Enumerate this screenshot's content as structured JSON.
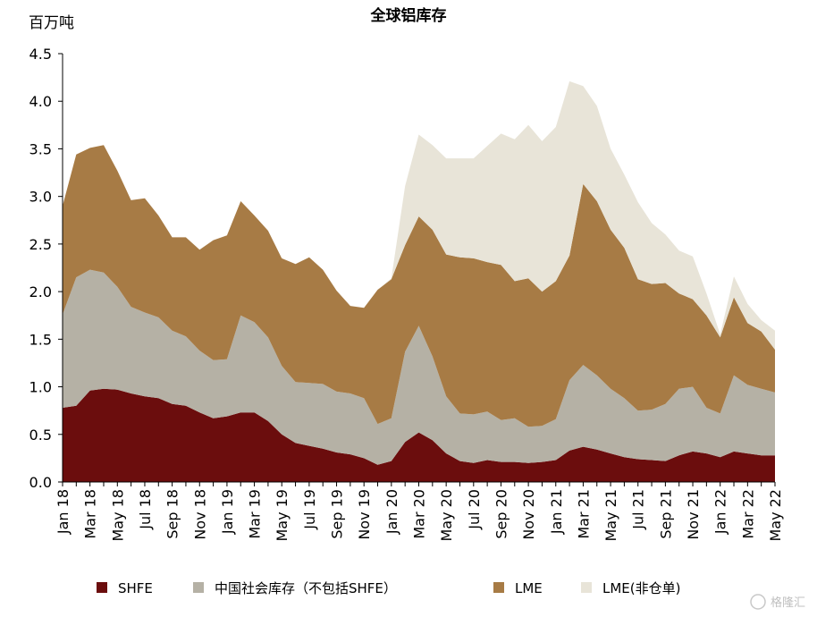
{
  "chart_data": {
    "type": "area",
    "stacked": true,
    "title": "全球铝库存",
    "ylabel": "百万吨",
    "ylim": [
      0,
      4.5
    ],
    "yticks": [
      "0.0",
      "0.5",
      "1.0",
      "1.5",
      "2.0",
      "2.5",
      "3.0",
      "3.5",
      "4.0",
      "4.5"
    ],
    "grid": false,
    "legend_position": "bottom",
    "x_tick_labels": [
      "Jan 18",
      "Mar 18",
      "May 18",
      "Jul 18",
      "Sep 18",
      "Nov 18",
      "Jan 19",
      "Mar 19",
      "May 19",
      "Jul 19",
      "Sep 19",
      "Nov 19",
      "Jan 20",
      "Mar 20",
      "May 20",
      "Jul 20",
      "Sep 20",
      "Nov 20",
      "Jan 21",
      "Mar 21",
      "May 21",
      "Jul 21",
      "Sep 21",
      "Nov 21",
      "Jan 22",
      "Mar 22",
      "May 22"
    ],
    "x": [
      "Jan 18",
      "",
      "Mar 18",
      "",
      "May 18",
      "",
      "Jul 18",
      "",
      "Sep 18",
      "",
      "Nov 18",
      "",
      "Jan 19",
      "",
      "Mar 19",
      "",
      "May 19",
      "",
      "Jul 19",
      "",
      "Sep 19",
      "",
      "Nov 19",
      "",
      "Jan 20",
      "",
      "Mar 20",
      "",
      "May 20",
      "",
      "Jul 20",
      "",
      "Sep 20",
      "",
      "Nov 20",
      "",
      "Jan 21",
      "",
      "Mar 21",
      "",
      "May 21",
      "",
      "Jul 21",
      "",
      "Sep 21",
      "",
      "Nov 21",
      "",
      "Jan 22",
      "",
      "Mar 22",
      "",
      "May 22"
    ],
    "series": [
      {
        "name": "SHFE",
        "color": "#6b0d0d",
        "values": [
          0.78,
          0.8,
          0.96,
          0.98,
          0.97,
          0.93,
          0.9,
          0.88,
          0.82,
          0.8,
          0.73,
          0.67,
          0.69,
          0.73,
          0.73,
          0.64,
          0.5,
          0.41,
          0.38,
          0.35,
          0.31,
          0.29,
          0.25,
          0.18,
          0.22,
          0.42,
          0.52,
          0.44,
          0.3,
          0.22,
          0.2,
          0.23,
          0.21,
          0.21,
          0.2,
          0.21,
          0.23,
          0.33,
          0.37,
          0.34,
          0.3,
          0.26,
          0.24,
          0.23,
          0.22,
          0.28,
          0.32,
          0.3,
          0.26,
          0.32,
          0.3,
          0.28,
          0.28
        ]
      },
      {
        "name": "中国社会库存（不包括SHFE）",
        "color": "#b5b1a5",
        "values": [
          0.98,
          1.35,
          1.27,
          1.22,
          1.08,
          0.91,
          0.88,
          0.85,
          0.77,
          0.73,
          0.65,
          0.61,
          0.6,
          1.02,
          0.95,
          0.88,
          0.72,
          0.64,
          0.66,
          0.68,
          0.64,
          0.64,
          0.63,
          0.43,
          0.45,
          0.95,
          1.12,
          0.88,
          0.6,
          0.5,
          0.51,
          0.51,
          0.44,
          0.46,
          0.38,
          0.38,
          0.43,
          0.74,
          0.86,
          0.78,
          0.68,
          0.62,
          0.51,
          0.53,
          0.6,
          0.7,
          0.68,
          0.48,
          0.46,
          0.8,
          0.72,
          0.7,
          0.66
        ]
      },
      {
        "name": "LME",
        "color": "#a77b45",
        "values": [
          1.14,
          1.29,
          1.28,
          1.34,
          1.22,
          1.12,
          1.2,
          1.07,
          0.98,
          1.04,
          1.06,
          1.26,
          1.3,
          1.2,
          1.12,
          1.12,
          1.13,
          1.24,
          1.32,
          1.2,
          1.06,
          0.92,
          0.95,
          1.41,
          1.46,
          1.12,
          1.15,
          1.33,
          1.49,
          1.64,
          1.64,
          1.57,
          1.63,
          1.44,
          1.56,
          1.41,
          1.45,
          1.31,
          1.9,
          1.83,
          1.67,
          1.58,
          1.38,
          1.32,
          1.27,
          1.0,
          0.92,
          0.97,
          0.8,
          0.82,
          0.65,
          0.6,
          0.45
        ]
      },
      {
        "name": "LME(非仓单)",
        "color": "#e8e4d8",
        "values": [
          0,
          0,
          0,
          0,
          0,
          0,
          0,
          0,
          0,
          0,
          0,
          0,
          0,
          0,
          0,
          0,
          0,
          0,
          0,
          0,
          0,
          0,
          0,
          0,
          0.01,
          0.62,
          0.86,
          0.89,
          1.01,
          1.04,
          1.05,
          1.22,
          1.38,
          1.49,
          1.61,
          1.58,
          1.62,
          1.83,
          1.03,
          1.0,
          0.85,
          0.77,
          0.81,
          0.64,
          0.51,
          0.45,
          0.45,
          0.23,
          0.03,
          0.22,
          0.2,
          0.12,
          0.2
        ]
      }
    ]
  },
  "watermark": "格隆汇"
}
